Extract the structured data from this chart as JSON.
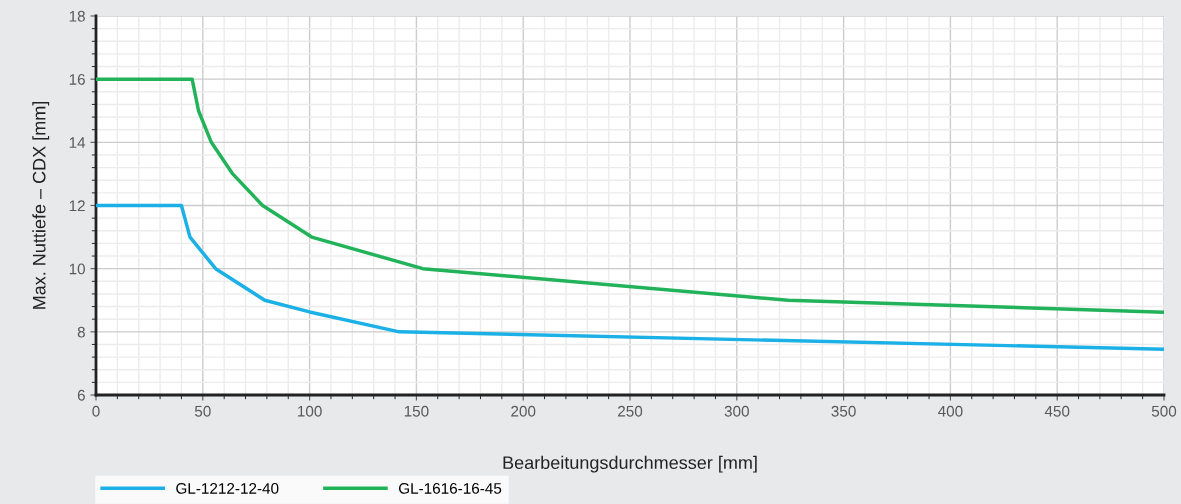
{
  "chart_data": {
    "type": "line",
    "xlabel": "Bearbeitungsdurchmesser [mm]",
    "ylabel": "Max. Nuttiefe – CDX [mm]",
    "xlim": [
      0,
      500
    ],
    "xticks": [
      0,
      50,
      100,
      150,
      200,
      250,
      300,
      350,
      400,
      450,
      500
    ],
    "ylim": [
      6,
      18
    ],
    "yticks": [
      6,
      8,
      10,
      12,
      14,
      16,
      18
    ],
    "grid": true,
    "legend": "bottom left",
    "marker": "none",
    "line_style": "solid",
    "series": [
      {
        "name": "GL-1212-12-40",
        "color": "#1bb0e6",
        "x": [
          0,
          40,
          44,
          56,
          79,
          100,
          142,
          500
        ],
        "values": [
          12,
          12,
          11,
          10,
          9,
          8.63,
          8,
          7.45
        ]
      },
      {
        "name": "GL-1616-16-45",
        "color": "#22b35a",
        "x": [
          0,
          45,
          48,
          54,
          64,
          78,
          101,
          153,
          324,
          500
        ],
        "values": [
          16,
          16,
          15,
          14,
          13,
          12,
          11,
          10,
          9,
          8.62
        ]
      }
    ]
  }
}
